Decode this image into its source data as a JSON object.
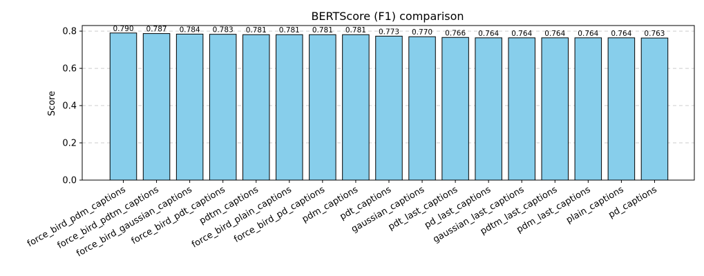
{
  "chart_data": {
    "type": "bar",
    "title": "BERTScore (F1) comparison",
    "xlabel": "",
    "ylabel": "Score",
    "ylim": [
      0,
      0.83
    ],
    "yticks": [
      "0.0",
      "0.2",
      "0.4",
      "0.6",
      "0.8"
    ],
    "grid": "y dashed",
    "bar_color": "#87CEEB",
    "bar_edge_color": "#000000",
    "categories": [
      "force_bird_pdm_captions",
      "force_bird_pdtm_captions",
      "force_bird_gaussian_captions",
      "force_bird_pdt_captions",
      "pdtm_captions",
      "force_bird_plain_captions",
      "force_bird_pd_captions",
      "pdm_captions",
      "pdt_captions",
      "gaussian_captions",
      "pdt_last_captions",
      "pd_last_captions",
      "gaussian_last_captions",
      "pdtm_last_captions",
      "pdm_last_captions",
      "plain_captions",
      "pd_captions"
    ],
    "values": [
      0.79,
      0.787,
      0.784,
      0.783,
      0.781,
      0.781,
      0.781,
      0.781,
      0.773,
      0.77,
      0.766,
      0.764,
      0.764,
      0.764,
      0.764,
      0.764,
      0.763
    ],
    "value_labels": [
      "0.790",
      "0.787",
      "0.784",
      "0.783",
      "0.781",
      "0.781",
      "0.781",
      "0.781",
      "0.773",
      "0.770",
      "0.766",
      "0.764",
      "0.764",
      "0.764",
      "0.764",
      "0.764",
      "0.763"
    ]
  }
}
